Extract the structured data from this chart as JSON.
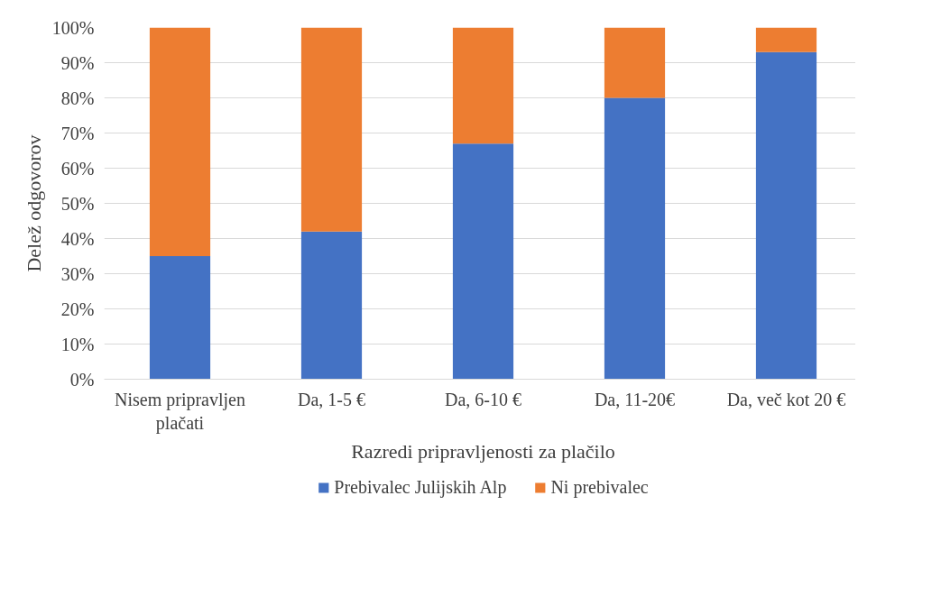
{
  "chart_data": {
    "type": "bar",
    "stacked": true,
    "xlabel": "Razredi pripravljenosti za plačilo",
    "ylabel": "Delež odgovorov",
    "categories": [
      "Nisem pripravljen plačati",
      "Da, 1-5 €",
      "Da, 6-10 €",
      "Da, 11-20€",
      "Da, več kot 20 €"
    ],
    "series": [
      {
        "name": "Prebivalec Julijskih Alp",
        "color": "#4472c4",
        "values": [
          35,
          42,
          67,
          80,
          93
        ]
      },
      {
        "name": "Ni prebivalec",
        "color": "#ed7d31",
        "values": [
          65,
          58,
          33,
          20,
          7
        ]
      }
    ],
    "ylim": [
      0,
      100
    ],
    "yticks": [
      {
        "value": 0,
        "label": "0%"
      },
      {
        "value": 10,
        "label": "10%"
      },
      {
        "value": 20,
        "label": "20%"
      },
      {
        "value": 30,
        "label": "30%"
      },
      {
        "value": 40,
        "label": "40%"
      },
      {
        "value": 50,
        "label": "50%"
      },
      {
        "value": 60,
        "label": "60%"
      },
      {
        "value": 70,
        "label": "70%"
      },
      {
        "value": 80,
        "label": "80%"
      },
      {
        "value": 90,
        "label": "90%"
      },
      {
        "value": 100,
        "label": "100%"
      }
    ],
    "grid": "y",
    "legend": "bottom"
  }
}
